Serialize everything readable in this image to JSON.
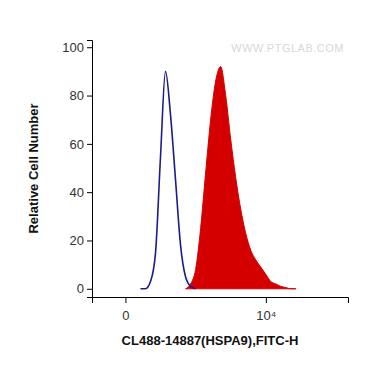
{
  "chart_data": {
    "type": "area",
    "x_label": "CL488-14887(HSPA9),FITC-H",
    "y_label": "Relative Cell Number",
    "annotations": [
      "WWW.PTGLAB.COM"
    ],
    "x": [
      64,
      93,
      128,
      169,
      217,
      273,
      340,
      419,
      512,
      621,
      751,
      903,
      1083,
      1295,
      1544,
      1840,
      2186,
      2597,
      3077,
      3650,
      4316,
      5110,
      6040,
      7140,
      8430,
      9970,
      11760,
      13900,
      16390,
      19350,
      22800,
      26900,
      31700
    ],
    "series": [
      {
        "type": "line",
        "color": "#1c1c8c",
        "values": [
          0,
          0,
          3,
          15,
          55,
          90,
          72,
          45,
          18,
          5,
          1,
          0,
          null,
          null,
          null,
          null,
          null,
          null,
          null,
          null,
          null,
          null,
          null,
          null,
          null,
          null,
          null,
          null,
          null,
          null,
          null,
          null,
          null
        ]
      },
      {
        "type": "area",
        "color": "#d40000",
        "values": [
          null,
          null,
          null,
          null,
          null,
          null,
          null,
          null,
          null,
          0,
          2,
          8,
          25,
          48,
          70,
          86,
          92,
          80,
          62,
          46,
          33,
          23,
          16,
          12,
          9,
          6,
          3,
          2,
          1,
          0.5,
          0,
          0,
          null
        ]
      }
    ],
    "xlim": [
      -200,
      150000
    ],
    "xticks": [
      0,
      {
        "value": 10000,
        "label": "10⁴"
      }
    ],
    "ylim": [
      -3.4,
      103
    ],
    "yticks": [
      0,
      20,
      40,
      60,
      80,
      100
    ],
    "grid": false
  }
}
